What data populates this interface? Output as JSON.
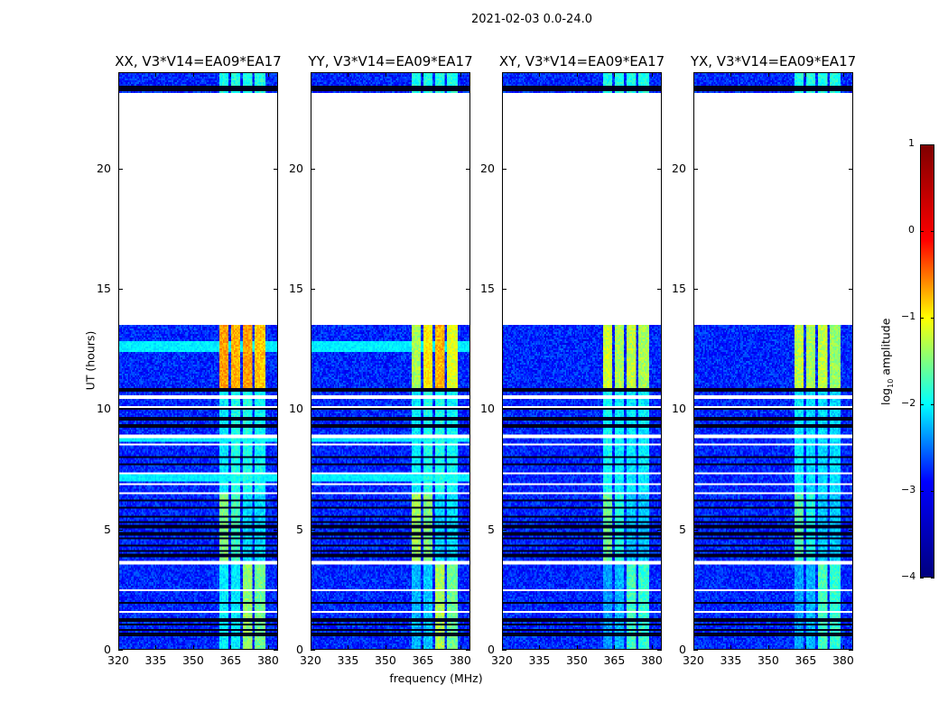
{
  "chart_data": {
    "type": "heatmap",
    "title": "2021-02-03 0.0-24.0",
    "xlabel": "frequency (MHz)",
    "ylabel": "UT (hours)",
    "xlim": [
      320,
      384
    ],
    "ylim": [
      0,
      24
    ],
    "xticks": [
      "320",
      "335",
      "350",
      "365",
      "380"
    ],
    "xtick_values": [
      320,
      335,
      350,
      365,
      380
    ],
    "yticks": [
      "0",
      "5",
      "10",
      "15",
      "20"
    ],
    "ytick_values": [
      0,
      5,
      10,
      15,
      20
    ],
    "colorbar": {
      "label_main": "log",
      "label_sub": "10",
      "label_rest": " amplitude",
      "range": [
        -4,
        1
      ],
      "ticks": [
        "1",
        "0",
        "−1",
        "−2",
        "−3",
        "−4"
      ],
      "tick_values": [
        1,
        0,
        -1,
        -2,
        -3,
        -4
      ],
      "colormap": "jet"
    },
    "background_level": -3.2,
    "bright_bands_mhz": [
      [
        360.5,
        364.5
      ],
      [
        365.5,
        369
      ],
      [
        370,
        374
      ],
      [
        375,
        379
      ]
    ],
    "flagged_hours": [
      [
        13.5,
        23.2
      ],
      [
        10.4,
        10.6
      ],
      [
        10.08,
        10.12
      ],
      [
        8.78,
        8.9
      ],
      [
        8.45,
        8.52
      ],
      [
        7.3,
        7.36
      ],
      [
        6.84,
        6.9
      ],
      [
        6.45,
        6.52
      ],
      [
        3.5,
        3.7
      ],
      [
        2.38,
        2.5
      ],
      [
        2.07,
        2.12
      ],
      [
        1.48,
        1.55
      ]
    ],
    "dark_rows_hours": [
      23.3,
      23.35,
      23.4,
      23.45,
      10.8,
      10.0,
      9.6,
      9.3,
      8.0,
      7.7,
      6.2,
      5.9,
      5.5,
      5.3,
      5.1,
      4.8,
      4.6,
      4.3,
      4.1,
      3.9,
      1.9,
      1.2,
      1.0,
      0.8,
      0.6
    ],
    "elevated_rows_hours": [
      [
        12.4,
        12.8
      ],
      [
        6.95,
        7.25
      ],
      [
        8.6,
        8.75
      ]
    ],
    "panels": [
      {
        "title": "XX, V3*V14=EA09*EA17",
        "segments": [
          {
            "hours": [
              10.8,
              13.5
            ],
            "band_levels": [
              -0.4,
              -0.5,
              -0.4,
              -0.6
            ]
          },
          {
            "hours": [
              6.5,
              10.8
            ],
            "band_levels": [
              -2.2,
              -2.0,
              -2.0,
              -2.1
            ]
          },
          {
            "hours": [
              3.7,
              6.5
            ],
            "band_levels": [
              -1.5,
              -1.8,
              -2.3,
              -2.3
            ]
          },
          {
            "hours": [
              0,
              3.5
            ],
            "band_levels": [
              -2.2,
              -2.2,
              -1.4,
              -1.6
            ]
          },
          {
            "hours": [
              23.2,
              24
            ],
            "band_levels": [
              -2.0,
              -2.0,
              -2.0,
              -2.0
            ]
          }
        ]
      },
      {
        "title": "YY, V3*V14=EA09*EA17",
        "segments": [
          {
            "hours": [
              10.8,
              13.5
            ],
            "band_levels": [
              -1.3,
              -0.8,
              -0.5,
              -1.0
            ]
          },
          {
            "hours": [
              6.5,
              10.8
            ],
            "band_levels": [
              -2.2,
              -2.0,
              -2.0,
              -2.1
            ]
          },
          {
            "hours": [
              3.7,
              6.5
            ],
            "band_levels": [
              -1.3,
              -1.5,
              -2.3,
              -2.3
            ]
          },
          {
            "hours": [
              0,
              3.5
            ],
            "band_levels": [
              -2.5,
              -2.4,
              -1.3,
              -1.6
            ]
          },
          {
            "hours": [
              23.2,
              24
            ],
            "band_levels": [
              -2.0,
              -2.0,
              -2.0,
              -2.0
            ]
          }
        ]
      },
      {
        "title": "XY, V3*V14=EA09*EA17",
        "segments": [
          {
            "hours": [
              10.8,
              13.5
            ],
            "band_levels": [
              -1.1,
              -1.3,
              -1.2,
              -1.3
            ]
          },
          {
            "hours": [
              6.5,
              10.8
            ],
            "band_levels": [
              -2.1,
              -2.2,
              -2.2,
              -2.2
            ]
          },
          {
            "hours": [
              3.7,
              6.5
            ],
            "band_levels": [
              -1.6,
              -2.0,
              -2.4,
              -2.4
            ]
          },
          {
            "hours": [
              0,
              3.5
            ],
            "band_levels": [
              -2.6,
              -2.5,
              -1.8,
              -1.9
            ]
          },
          {
            "hours": [
              23.2,
              24
            ],
            "band_levels": [
              -2.0,
              -2.0,
              -2.0,
              -2.0
            ]
          }
        ]
      },
      {
        "title": "YX, V3*V14=EA09*EA17",
        "segments": [
          {
            "hours": [
              10.8,
              13.5
            ],
            "band_levels": [
              -1.2,
              -1.3,
              -1.2,
              -1.4
            ]
          },
          {
            "hours": [
              6.5,
              10.8
            ],
            "band_levels": [
              -2.2,
              -2.3,
              -2.3,
              -2.3
            ]
          },
          {
            "hours": [
              3.7,
              6.5
            ],
            "band_levels": [
              -1.7,
              -2.0,
              -2.4,
              -2.4
            ]
          },
          {
            "hours": [
              0,
              3.5
            ],
            "band_levels": [
              -2.6,
              -2.5,
              -1.8,
              -1.9
            ]
          },
          {
            "hours": [
              23.2,
              24
            ],
            "band_levels": [
              -2.0,
              -2.0,
              -2.0,
              -2.0
            ]
          }
        ]
      }
    ]
  }
}
